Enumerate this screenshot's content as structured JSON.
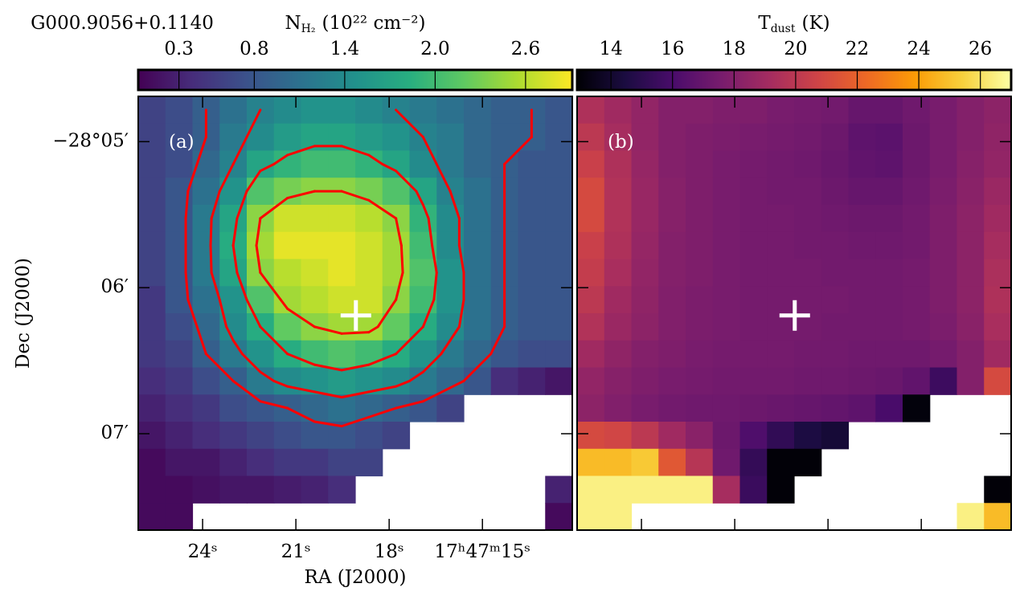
{
  "chart_data": [
    {
      "type": "heatmap",
      "title": "G000.9056+0.1140",
      "panel_label": "(a)",
      "xlabel": "RA (J2000)",
      "ylabel": "Dec (J2000)",
      "xlim": [
        26.07,
        12.11
      ],
      "ylim": [
        4.69,
        7.66
      ],
      "xticks": [
        {
          "value": 24,
          "label": "24ˢ"
        },
        {
          "value": 21,
          "label": "21ˢ"
        },
        {
          "value": 18,
          "label": "18ˢ"
        },
        {
          "value": 15,
          "label": "17ʰ47ᵐ15ˢ"
        }
      ],
      "yticks": [
        {
          "value": 5,
          "label": "−28°05′"
        },
        {
          "value": 6,
          "label": "06′"
        },
        {
          "value": 7,
          "label": "07′"
        }
      ],
      "colorbar": {
        "symbol": "N",
        "subscript": "H₂",
        "unit": "(10²² cm⁻²)",
        "clim": [
          0.03,
          2.91
        ],
        "ticks": [
          0.3,
          0.8,
          1.4,
          {
            "value": 2,
            "label": "2.0"
          },
          2.6
        ],
        "colormap": [
          "#440154",
          "#472d7b",
          "#3b528b",
          "#2c728e",
          "#21918c",
          "#28ae80",
          "#5ec962",
          "#addc30",
          "#fde725"
        ]
      },
      "contour": {
        "levels": [
          0.9,
          1.3,
          1.8,
          2.4
        ],
        "color": "#ff0000"
      },
      "marker": {
        "x": 19.07,
        "y": 6.19,
        "color": "#ffffff"
      },
      "grid": [
        [
          0.6,
          0.7,
          0.9,
          1.1,
          1.3,
          1.4,
          1.5,
          1.5,
          1.4,
          1.3,
          1.2,
          1.1,
          1.0,
          0.9,
          0.9,
          0.8
        ],
        [
          0.6,
          0.7,
          0.9,
          1.2,
          1.4,
          1.6,
          1.7,
          1.7,
          1.6,
          1.5,
          1.3,
          1.2,
          1.0,
          0.9,
          0.9,
          0.8
        ],
        [
          0.6,
          0.7,
          1.0,
          1.3,
          1.7,
          1.9,
          2.0,
          2.0,
          1.9,
          1.7,
          1.4,
          1.2,
          1.0,
          0.9,
          0.8,
          0.8
        ],
        [
          0.6,
          0.8,
          1.1,
          1.5,
          2.1,
          2.3,
          2.4,
          2.4,
          2.3,
          2.1,
          1.7,
          1.3,
          1.1,
          0.9,
          0.8,
          0.8
        ],
        [
          0.6,
          0.8,
          1.2,
          1.7,
          2.4,
          2.7,
          2.7,
          2.7,
          2.6,
          2.4,
          1.9,
          1.4,
          1.1,
          0.9,
          0.8,
          0.8
        ],
        [
          0.6,
          0.8,
          1.2,
          1.8,
          2.5,
          2.8,
          2.8,
          2.8,
          2.7,
          2.5,
          2.0,
          1.4,
          1.1,
          0.9,
          0.8,
          0.8
        ],
        [
          0.6,
          0.8,
          1.2,
          1.7,
          2.4,
          2.6,
          2.7,
          2.8,
          2.7,
          2.5,
          2.1,
          1.5,
          1.1,
          0.9,
          0.8,
          0.8
        ],
        [
          0.5,
          0.8,
          1.1,
          1.5,
          2.1,
          2.5,
          2.6,
          2.7,
          2.7,
          2.4,
          2.0,
          1.5,
          1.1,
          0.9,
          0.8,
          0.8
        ],
        [
          0.5,
          0.7,
          1.0,
          1.4,
          1.8,
          2.2,
          2.4,
          2.5,
          2.5,
          2.2,
          1.8,
          1.4,
          1.1,
          0.9,
          0.8,
          0.8
        ],
        [
          0.5,
          0.6,
          0.9,
          1.2,
          1.5,
          1.8,
          2.0,
          2.1,
          2.0,
          1.8,
          1.5,
          1.2,
          1.0,
          0.8,
          0.7,
          0.7
        ],
        [
          0.4,
          0.5,
          0.7,
          0.9,
          1.2,
          1.4,
          1.5,
          1.6,
          1.5,
          1.4,
          1.2,
          1.0,
          0.8,
          0.4,
          0.3,
          0.2
        ],
        [
          0.3,
          0.4,
          0.5,
          0.7,
          0.8,
          0.9,
          1.0,
          1.1,
          1.0,
          0.9,
          0.8,
          0.6,
          null,
          null,
          null,
          null
        ],
        [
          0.2,
          0.3,
          0.4,
          0.5,
          0.6,
          0.7,
          0.8,
          0.8,
          0.7,
          0.6,
          null,
          null,
          null,
          null,
          null,
          null
        ],
        [
          0.1,
          0.2,
          0.2,
          0.3,
          0.4,
          0.5,
          0.5,
          0.6,
          0.6,
          null,
          null,
          null,
          null,
          null,
          null,
          null
        ],
        [
          0.1,
          0.1,
          0.15,
          0.2,
          0.2,
          0.25,
          0.3,
          0.4,
          null,
          null,
          null,
          null,
          null,
          null,
          null,
          0.3
        ],
        [
          0.1,
          0.1,
          null,
          null,
          null,
          null,
          null,
          null,
          null,
          null,
          null,
          null,
          null,
          null,
          null,
          0.1
        ]
      ]
    },
    {
      "type": "heatmap",
      "panel_label": "(b)",
      "xlim": [
        26.07,
        12.11
      ],
      "ylim": [
        4.69,
        7.66
      ],
      "colorbar": {
        "symbol": "T",
        "subscript": "dust",
        "unit": "(K)",
        "clim": [
          12.9,
          27.0
        ],
        "ticks": [
          14,
          16,
          18,
          20,
          22,
          24,
          26
        ],
        "colormap": [
          "#000004",
          "#1b0c41",
          "#4a0c6b",
          "#781c6d",
          "#a52c60",
          "#cf4446",
          "#ed6925",
          "#fb9b06",
          "#f7d13d",
          "#fcffa4"
        ]
      },
      "marker": {
        "x": 19.07,
        "y": 6.19,
        "color": "#ffffff"
      },
      "grid": [
        [
          19.5,
          19,
          18.5,
          18,
          18,
          17.8,
          17.8,
          17.6,
          17.5,
          17.4,
          17,
          17,
          17.3,
          17.6,
          18,
          18.3
        ],
        [
          20,
          19.2,
          18.5,
          18,
          17.8,
          17.7,
          17.6,
          17.5,
          17.4,
          17.2,
          16.7,
          16.6,
          17.2,
          17.6,
          18,
          18.4
        ],
        [
          20.5,
          19.5,
          18.6,
          18,
          17.8,
          17.6,
          17.5,
          17.4,
          17.3,
          17.1,
          16.8,
          16.7,
          17.2,
          17.6,
          18.1,
          18.5
        ],
        [
          21,
          19.6,
          18.7,
          18.1,
          17.8,
          17.6,
          17.5,
          17.4,
          17.4,
          17.2,
          17,
          17,
          17.3,
          17.7,
          18.2,
          18.8
        ],
        [
          21,
          19.6,
          18.7,
          18.1,
          17.8,
          17.6,
          17.5,
          17.5,
          17.4,
          17.3,
          17.2,
          17.2,
          17.4,
          17.8,
          18.3,
          19
        ],
        [
          20.5,
          19.5,
          18.6,
          18,
          17.8,
          17.6,
          17.5,
          17.5,
          17.4,
          17.4,
          17.3,
          17.3,
          17.4,
          17.8,
          18.3,
          19.2
        ],
        [
          20.3,
          19.3,
          18.5,
          18,
          17.8,
          17.6,
          17.5,
          17.5,
          17.5,
          17.4,
          17.4,
          17.4,
          17.5,
          17.8,
          18.3,
          19.4
        ],
        [
          20,
          19,
          18.4,
          17.9,
          17.7,
          17.6,
          17.5,
          17.5,
          17.5,
          17.5,
          17.4,
          17.4,
          17.5,
          17.8,
          18.3,
          19.5
        ],
        [
          19.6,
          18.8,
          18.3,
          17.9,
          17.7,
          17.6,
          17.5,
          17.5,
          17.5,
          17.4,
          17.4,
          17.4,
          17.5,
          17.7,
          18.2,
          19.3
        ],
        [
          19,
          18.4,
          18,
          17.8,
          17.6,
          17.5,
          17.5,
          17.5,
          17.4,
          17.4,
          17.3,
          17.3,
          17.3,
          17.5,
          18,
          19
        ],
        [
          18.5,
          18.1,
          17.8,
          17.6,
          17.5,
          17.4,
          17.4,
          17.4,
          17.3,
          17.3,
          17.2,
          17.1,
          16.8,
          15.6,
          18,
          21
        ],
        [
          18.3,
          17.9,
          17.6,
          17.4,
          17.3,
          17.3,
          17.2,
          17.1,
          17,
          16.9,
          16.7,
          16,
          13.1,
          null,
          null,
          null
        ],
        [
          21,
          20.8,
          20,
          19,
          18.2,
          17.2,
          16.2,
          15.2,
          14.5,
          14.2,
          null,
          null,
          null,
          null,
          null,
          null
        ],
        [
          24.8,
          24.8,
          25.2,
          21.6,
          19.8,
          17.3,
          15.3,
          13,
          13,
          null,
          null,
          null,
          null,
          null,
          null,
          null
        ],
        [
          26.5,
          26.5,
          26.5,
          26.5,
          26.5,
          19.2,
          15.5,
          13,
          null,
          null,
          null,
          null,
          null,
          null,
          null,
          13
        ],
        [
          26.5,
          26.5,
          null,
          null,
          null,
          null,
          null,
          null,
          null,
          null,
          null,
          null,
          null,
          null,
          26.5,
          24.8
        ]
      ]
    }
  ]
}
